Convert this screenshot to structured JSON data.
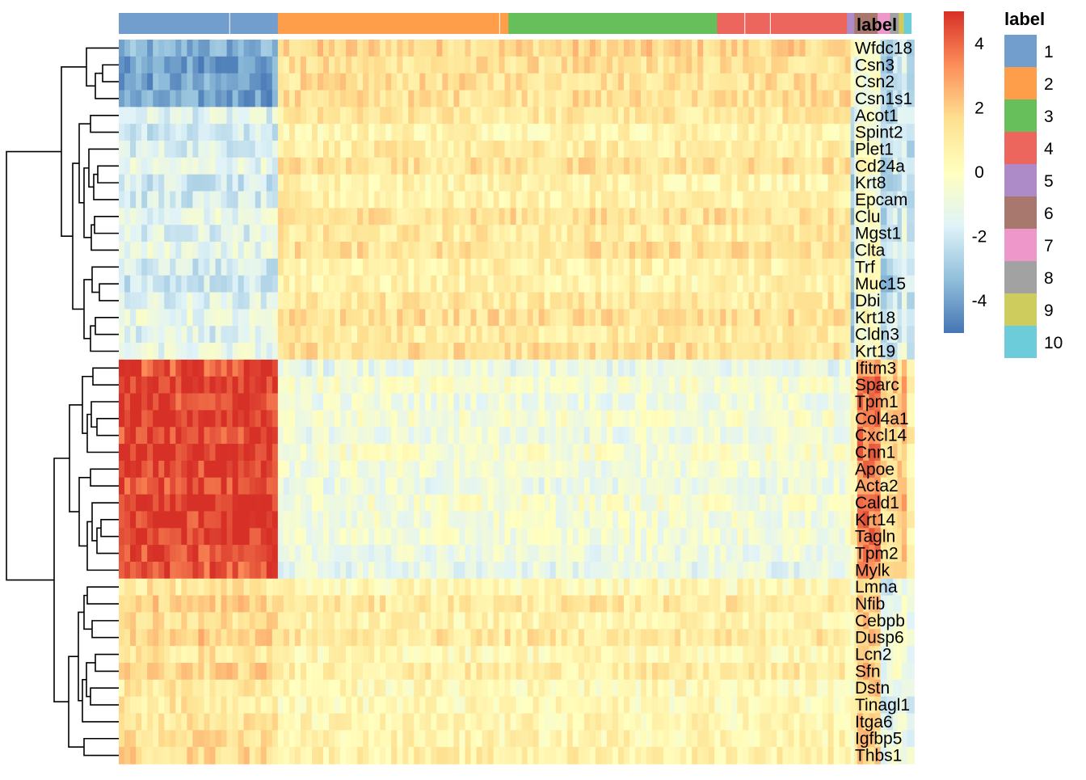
{
  "chart_data": {
    "type": "heatmap",
    "annotation_title": "label",
    "color_scale": {
      "ticks": [
        4,
        2,
        0,
        -2,
        -4
      ],
      "range": [
        -5,
        5
      ],
      "colors": [
        "#4575b4",
        "#91bfdb",
        "#e0f3f8",
        "#ffffbf",
        "#fee090",
        "#fc8d59",
        "#d73027"
      ]
    },
    "clusters": [
      {
        "label": "1",
        "color": "#729ECE",
        "fraction": 0.218
      },
      {
        "label": "2",
        "color": "#FF9E4A",
        "fraction": 0.316
      },
      {
        "label": "3",
        "color": "#67BF5C",
        "fraction": 0.286
      },
      {
        "label": "4",
        "color": "#ED665D",
        "fraction": 0.178
      },
      {
        "label": "5",
        "color": "#AD8BC9",
        "fraction": 0.01
      },
      {
        "label": "6",
        "color": "#A8786E",
        "fraction": 0.032
      },
      {
        "label": "7",
        "color": "#ED97CA",
        "fraction": 0.017
      },
      {
        "label": "8",
        "color": "#A2A2A2",
        "fraction": 0.012
      },
      {
        "label": "9",
        "color": "#CDCC5D",
        "fraction": 0.007
      },
      {
        "label": "10",
        "color": "#6DCCDA",
        "fraction": 0.01
      }
    ],
    "segments": [
      {
        "fraction": 0.218,
        "values": {
          "A": -3.8,
          "B": -1.6,
          "C": 4.6,
          "D": 1.5
        }
      },
      {
        "fraction": 0.785,
        "values": {
          "A": 1.6,
          "B": 1.0,
          "C": -0.8,
          "D": 0.7
        }
      },
      {
        "fraction": 0.005,
        "values": {
          "A": 0.2,
          "B": -3.2,
          "C": 0.5,
          "D": 0.2
        }
      },
      {
        "fraction": 0.004,
        "values": {
          "A": -0.9,
          "B": -1.0,
          "C": 0.4,
          "D": 0.8
        }
      },
      {
        "fraction": 0.032,
        "values": {
          "A": -0.3,
          "B": -0.2,
          "C": 3.5,
          "D": 2.0
        }
      },
      {
        "fraction": 0.017,
        "values": {
          "A": -3.0,
          "B": -2.6,
          "C": 1.4,
          "D": -1.5
        }
      },
      {
        "fraction": 0.012,
        "values": {
          "A": -2.2,
          "B": -2.0,
          "C": 1.8,
          "D": -0.8
        }
      },
      {
        "fraction": 0.007,
        "values": {
          "A": -1.2,
          "B": -1.2,
          "C": 2.5,
          "D": -0.6
        }
      },
      {
        "fraction": 0.01,
        "values": {
          "A": -2.8,
          "B": -2.2,
          "C": 0.8,
          "D": -1.2
        }
      }
    ],
    "genes": [
      {
        "name": "Wfdc18",
        "group": "A"
      },
      {
        "name": "Csn3",
        "group": "A"
      },
      {
        "name": "Csn2",
        "group": "A"
      },
      {
        "name": "Csn1s1",
        "group": "A"
      },
      {
        "name": "Acot1",
        "group": "B"
      },
      {
        "name": "Spint2",
        "group": "B"
      },
      {
        "name": "Plet1",
        "group": "B"
      },
      {
        "name": "Cd24a",
        "group": "B"
      },
      {
        "name": "Krt8",
        "group": "B"
      },
      {
        "name": "Epcam",
        "group": "B"
      },
      {
        "name": "Clu",
        "group": "B"
      },
      {
        "name": "Mgst1",
        "group": "B"
      },
      {
        "name": "Clta",
        "group": "B"
      },
      {
        "name": "Trf",
        "group": "B"
      },
      {
        "name": "Muc15",
        "group": "B"
      },
      {
        "name": "Dbi",
        "group": "B"
      },
      {
        "name": "Krt18",
        "group": "B"
      },
      {
        "name": "Cldn3",
        "group": "B"
      },
      {
        "name": "Krt19",
        "group": "B"
      },
      {
        "name": "Ifitm3",
        "group": "C"
      },
      {
        "name": "Sparc",
        "group": "C"
      },
      {
        "name": "Tpm1",
        "group": "C"
      },
      {
        "name": "Col4a1",
        "group": "C"
      },
      {
        "name": "Cxcl14",
        "group": "C"
      },
      {
        "name": "Cnn1",
        "group": "C"
      },
      {
        "name": "Apoe",
        "group": "C"
      },
      {
        "name": "Acta2",
        "group": "C"
      },
      {
        "name": "Cald1",
        "group": "C"
      },
      {
        "name": "Krt14",
        "group": "C"
      },
      {
        "name": "Tagln",
        "group": "C"
      },
      {
        "name": "Tpm2",
        "group": "C"
      },
      {
        "name": "Mylk",
        "group": "C"
      },
      {
        "name": "Lmna",
        "group": "D"
      },
      {
        "name": "Nfib",
        "group": "D"
      },
      {
        "name": "Cebpb",
        "group": "D"
      },
      {
        "name": "Dusp6",
        "group": "D"
      },
      {
        "name": "Lcn2",
        "group": "D"
      },
      {
        "name": "Sfn",
        "group": "D"
      },
      {
        "name": "Dstn",
        "group": "D"
      },
      {
        "name": "Tinagl1",
        "group": "D"
      },
      {
        "name": "Itga6",
        "group": "D"
      },
      {
        "name": "Igfbp5",
        "group": "D"
      },
      {
        "name": "Thbs1",
        "group": "D"
      }
    ],
    "legend_position": "right"
  }
}
